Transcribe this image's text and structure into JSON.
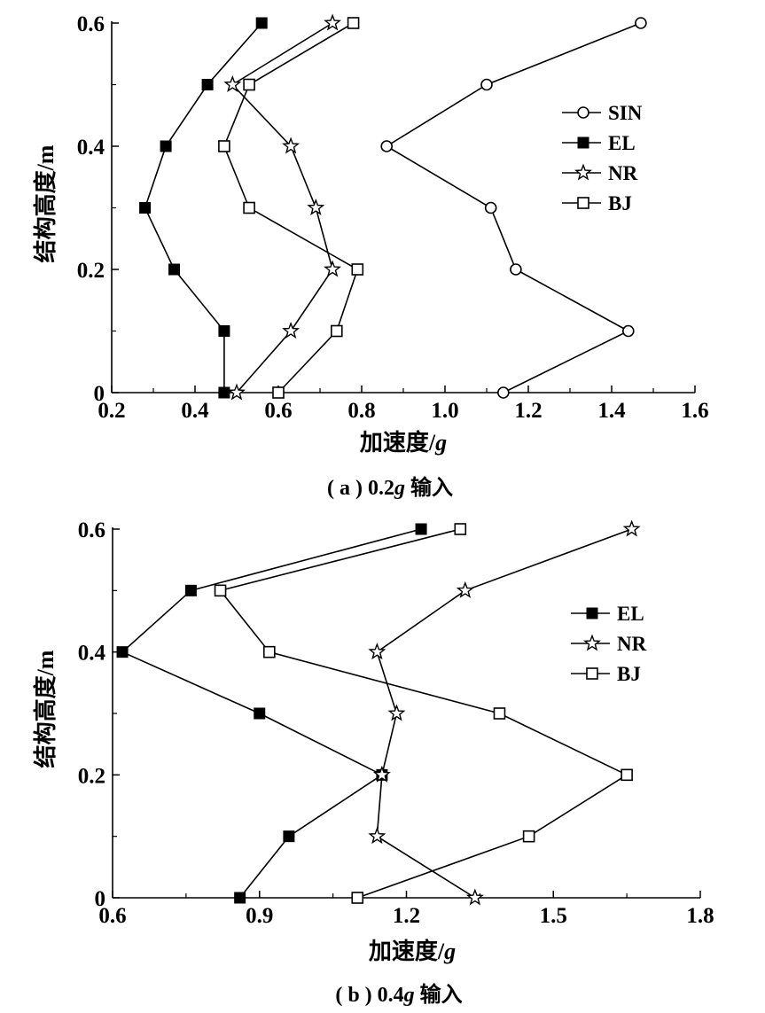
{
  "figure": {
    "panels": [
      {
        "caption_pre": "( a ) 0.2",
        "caption_g": "g",
        "caption_post": " 输入",
        "xlabel_main": "加速度/",
        "xlabel_g": "g",
        "ylabel": "结构高度/m"
      },
      {
        "caption_pre": "( b ) 0.4",
        "caption_g": "g",
        "caption_post": " 输入",
        "xlabel_main": "加速度/",
        "xlabel_g": "g",
        "ylabel": "结构高度/m"
      }
    ]
  },
  "chart_data": [
    {
      "type": "line",
      "title": "",
      "xlabel": "加速度/g",
      "ylabel": "结构高度/m",
      "xlim": [
        0.2,
        1.6
      ],
      "ylim": [
        0,
        0.6
      ],
      "xticks": [
        0.2,
        0.4,
        0.6,
        0.8,
        1.0,
        1.2,
        1.4,
        1.6
      ],
      "xtick_labels": [
        "0.2",
        "0.4",
        "0.6",
        "0.8",
        "1.0",
        "1.2",
        "1.4",
        "1.6"
      ],
      "yticks": [
        0,
        0.2,
        0.4,
        0.6
      ],
      "ytick_labels": [
        "0",
        "0.2",
        "0.4",
        "0.6"
      ],
      "legend_position": "right",
      "grid": false,
      "series": [
        {
          "name": "SIN",
          "marker": "circle-open",
          "points": [
            [
              1.14,
              0
            ],
            [
              1.44,
              0.1
            ],
            [
              1.17,
              0.2
            ],
            [
              1.11,
              0.3
            ],
            [
              0.86,
              0.4
            ],
            [
              1.1,
              0.5
            ],
            [
              1.47,
              0.6
            ]
          ]
        },
        {
          "name": "EL",
          "marker": "square-filled",
          "points": [
            [
              0.47,
              0
            ],
            [
              0.47,
              0.1
            ],
            [
              0.35,
              0.2
            ],
            [
              0.28,
              0.3
            ],
            [
              0.33,
              0.4
            ],
            [
              0.43,
              0.5
            ],
            [
              0.56,
              0.6
            ]
          ]
        },
        {
          "name": "NR",
          "marker": "star-open",
          "points": [
            [
              0.5,
              0
            ],
            [
              0.63,
              0.1
            ],
            [
              0.73,
              0.2
            ],
            [
              0.69,
              0.3
            ],
            [
              0.63,
              0.4
            ],
            [
              0.49,
              0.5
            ],
            [
              0.73,
              0.6
            ]
          ]
        },
        {
          "name": "BJ",
          "marker": "square-open",
          "points": [
            [
              0.6,
              0
            ],
            [
              0.74,
              0.1
            ],
            [
              0.79,
              0.2
            ],
            [
              0.53,
              0.3
            ],
            [
              0.47,
              0.4
            ],
            [
              0.53,
              0.5
            ],
            [
              0.78,
              0.6
            ]
          ]
        }
      ]
    },
    {
      "type": "line",
      "title": "",
      "xlabel": "加速度/g",
      "ylabel": "结构高度/m",
      "xlim": [
        0.6,
        1.8
      ],
      "ylim": [
        0,
        0.6
      ],
      "xticks": [
        0.6,
        0.9,
        1.2,
        1.5,
        1.8
      ],
      "xtick_labels": [
        "0.6",
        "0.9",
        "1.2",
        "1.5",
        "1.8"
      ],
      "yticks": [
        0,
        0.2,
        0.4,
        0.6
      ],
      "ytick_labels": [
        "0",
        "0.2",
        "0.4",
        "0.6"
      ],
      "legend_position": "right",
      "grid": false,
      "series": [
        {
          "name": "EL",
          "marker": "square-filled",
          "points": [
            [
              0.86,
              0
            ],
            [
              0.96,
              0.1
            ],
            [
              1.15,
              0.2
            ],
            [
              0.9,
              0.3
            ],
            [
              0.62,
              0.4
            ],
            [
              0.76,
              0.5
            ],
            [
              1.23,
              0.6
            ]
          ]
        },
        {
          "name": "NR",
          "marker": "star-open",
          "points": [
            [
              1.34,
              0
            ],
            [
              1.14,
              0.1
            ],
            [
              1.15,
              0.2
            ],
            [
              1.18,
              0.3
            ],
            [
              1.14,
              0.4
            ],
            [
              1.32,
              0.5
            ],
            [
              1.66,
              0.6
            ]
          ]
        },
        {
          "name": "BJ",
          "marker": "square-open",
          "points": [
            [
              1.1,
              0
            ],
            [
              1.45,
              0.1
            ],
            [
              1.65,
              0.2
            ],
            [
              1.39,
              0.3
            ],
            [
              0.92,
              0.4
            ],
            [
              0.82,
              0.5
            ],
            [
              1.31,
              0.6
            ]
          ]
        }
      ]
    }
  ]
}
